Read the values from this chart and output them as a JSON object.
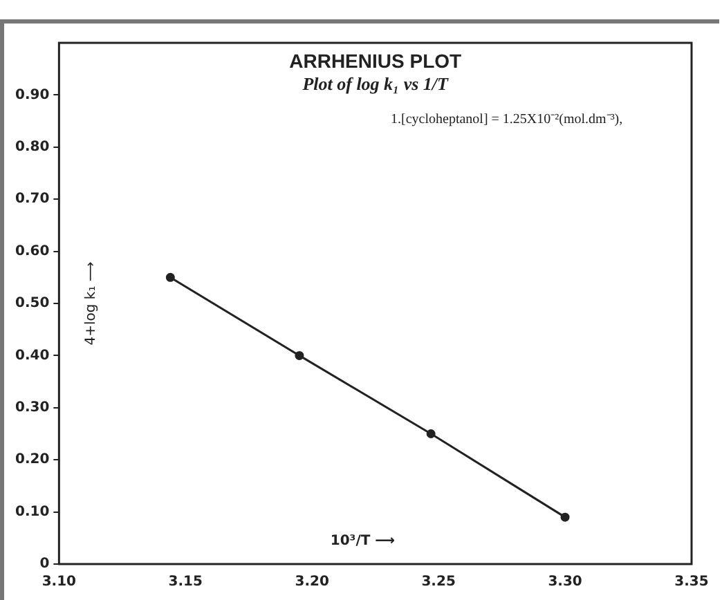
{
  "chart_data": {
    "type": "line",
    "title": "ARRHENIUS PLOT",
    "subtitle": "Plot of log k₁ vs 1/T",
    "xlabel": "10³/T ⟶",
    "ylabel": "4+log k₁ ⟶",
    "annotations": [
      "1.[cycloheptanol] = 1.25X10⁻²(mol.dm⁻³),"
    ],
    "x": [
      3.144,
      3.195,
      3.247,
      3.3
    ],
    "series": [
      {
        "color": "#222222",
        "values": [
          0.55,
          0.4,
          0.25,
          0.09
        ]
      }
    ],
    "xlim": [
      3.1,
      3.35
    ],
    "xticks": [
      {
        "value": 3.1,
        "label": "3.10"
      },
      3.15,
      {
        "value": 3.2,
        "label": "3.20"
      },
      3.25,
      {
        "value": 3.3,
        "label": "3.30"
      },
      3.35
    ],
    "ylim": [
      0,
      1.0
    ],
    "yticks": [
      {
        "value": 0,
        "label": "0"
      },
      {
        "value": 0.1,
        "label": "0.10"
      },
      {
        "value": 0.2,
        "label": "0.20"
      },
      {
        "value": 0.3,
        "label": "0.30"
      },
      {
        "value": 0.4,
        "label": "0.40"
      },
      {
        "value": 0.5,
        "label": "0.50"
      },
      {
        "value": 0.6,
        "label": "0.60"
      },
      {
        "value": 0.7,
        "label": "0.70"
      },
      {
        "value": 0.8,
        "label": "0.80"
      },
      {
        "value": 0.9,
        "label": "0.90"
      }
    ],
    "grid": false,
    "legend": false,
    "marker": "circle",
    "line_style": "solid"
  }
}
